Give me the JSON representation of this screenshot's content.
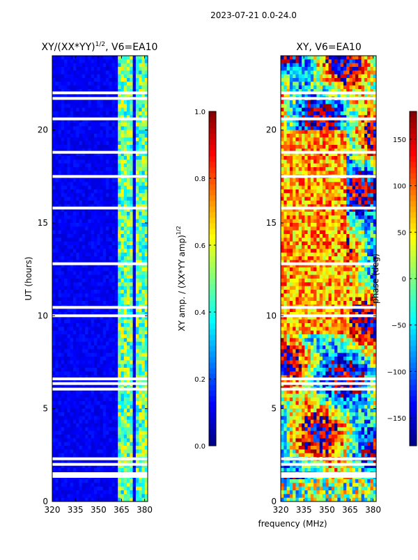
{
  "figure": {
    "suptitle": "2023-07-21 0.0-24.0",
    "xlabel_shared": "frequency (MHz)"
  },
  "colors": {
    "jet": [
      "#00007f",
      "#0000ff",
      "#007fff",
      "#00ffff",
      "#7fff7f",
      "#ffff00",
      "#ff7f00",
      "#ff0000",
      "#7f0000"
    ],
    "background_amp": "#0b22a8",
    "gap": "#ffffff"
  },
  "chart_data": [
    {
      "type": "heatmap",
      "title_main": "XY/(XX*YY)",
      "title_exp": "1/2",
      "title_suffix": ", V6=EA10",
      "xlabel": "",
      "ylabel": "UT (hours)",
      "xlim": [
        320,
        382
      ],
      "ylim": [
        0,
        24
      ],
      "xticks": [
        "320",
        "335",
        "350",
        "365",
        "380"
      ],
      "xtick_values": [
        320,
        335,
        350,
        365,
        380
      ],
      "yticks": [
        "0",
        "5",
        "10",
        "15",
        "20"
      ],
      "ytick_values": [
        0,
        5,
        10,
        15,
        20
      ],
      "colorbar": {
        "label_main": "XY amp. / (XX*YY amp)",
        "label_exp": "1/2",
        "range": [
          0,
          1
        ],
        "ticks": [
          "0.0",
          "0.2",
          "0.4",
          "0.6",
          "0.8",
          "1.0"
        ],
        "tick_values": [
          0,
          0.2,
          0.4,
          0.6,
          0.8,
          1.0
        ]
      },
      "high_amp_channels_mhz": [
        [
          363,
          368
        ],
        [
          369,
          373
        ],
        [
          374,
          378
        ],
        [
          379,
          382
        ]
      ],
      "gap_hours": [
        1.35,
        1.5,
        2.0,
        2.3,
        6.05,
        6.35,
        6.6,
        10.0,
        10.45,
        12.8,
        15.8,
        17.5,
        18.8,
        20.6,
        21.7,
        22.0
      ]
    },
    {
      "type": "heatmap",
      "title_main": "XY, V6=EA10",
      "xlabel": "",
      "ylabel": "",
      "xlim": [
        320,
        382
      ],
      "ylim": [
        0,
        24
      ],
      "xticks": [
        "320",
        "335",
        "350",
        "365",
        "380"
      ],
      "xtick_values": [
        320,
        335,
        350,
        365,
        380
      ],
      "yticks": [
        "0",
        "5",
        "10",
        "15",
        "20"
      ],
      "ytick_values": [
        0,
        5,
        10,
        15,
        20
      ],
      "colorbar": {
        "label_main": "phase (deg)",
        "range": [
          -180,
          180
        ],
        "ticks": [
          "−150",
          "−100",
          "−50",
          "0",
          "50",
          "100",
          "150"
        ],
        "tick_values": [
          -150,
          -100,
          -50,
          0,
          50,
          100,
          150
        ]
      },
      "gap_hours": [
        1.35,
        1.5,
        2.0,
        2.3,
        6.05,
        6.35,
        6.6,
        10.0,
        10.45,
        12.8,
        15.8,
        17.5,
        18.8,
        20.6,
        21.7,
        22.0
      ]
    }
  ]
}
